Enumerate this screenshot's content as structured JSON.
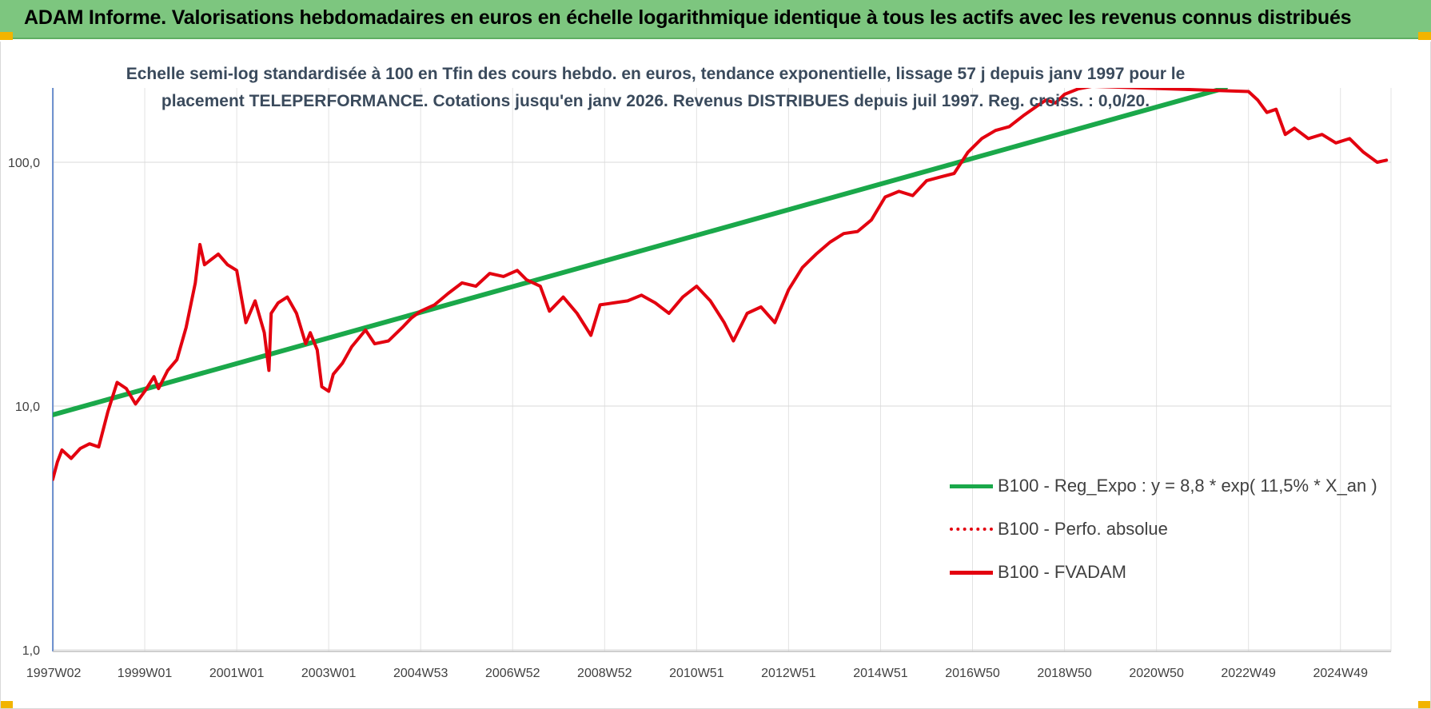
{
  "header": {
    "title": "ADAM Informe. Valorisations hebdomadaires en euros en échelle logarithmique identique à tous les actifs avec les revenus connus distribués"
  },
  "chart_data": {
    "type": "line",
    "title": "Echelle semi-log standardisée à 100 en Tfin des cours hebdo. en euros, tendance exponentielle, lissage 57 j depuis janv 1997 pour le placement TELEPERFORMANCE. Cotations jusqu'en janv 2026. Revenus DISTRIBUES depuis juil 1997. Reg. croiss. : 0,0/20.",
    "y_scale": "log",
    "ylim": [
      1,
      200
    ],
    "xlim": [
      1997.0,
      2026.1
    ],
    "y_ticks": [
      1,
      10,
      100
    ],
    "y_tick_labels": [
      "1,0",
      "10,0",
      "100,0"
    ],
    "x_tick_labels": [
      "1997W02",
      "1999W01",
      "2001W01",
      "2003W01",
      "2004W53",
      "2006W52",
      "2008W52",
      "2010W51",
      "2012W51",
      "2014W51",
      "2016W50",
      "2018W50",
      "2020W50",
      "2022W49",
      "2024W49"
    ],
    "x_ticks": [
      1997.02,
      1999.0,
      2001.0,
      2003.0,
      2005.0,
      2007.0,
      2009.0,
      2011.0,
      2013.0,
      2015.0,
      2017.0,
      2019.0,
      2021.0,
      2023.0,
      2025.0
    ],
    "grid": "vertical and horizontal",
    "legend_position": "lower-right",
    "series": [
      {
        "name": "B100 - Reg_Expo : y = 8,8 * exp( 11,5% *  X_an )",
        "color": "#1aa84a",
        "style": "solid",
        "x": [
          1997.0,
          2022.5
        ],
        "y": [
          9.2,
          202
        ]
      },
      {
        "name": "B100 - Perfo. absolue",
        "color": "#e3000f",
        "style": "dotted",
        "x": [],
        "y": []
      },
      {
        "name": "B100 - FVADAM",
        "color": "#e3000f",
        "style": "solid",
        "x": [
          1997.0,
          1997.1,
          1997.2,
          1997.4,
          1997.6,
          1997.8,
          1998.0,
          1998.2,
          1998.4,
          1998.6,
          1998.8,
          1999.0,
          1999.2,
          1999.3,
          1999.5,
          1999.7,
          1999.9,
          2000.1,
          2000.2,
          2000.3,
          2000.45,
          2000.6,
          2000.8,
          2001.0,
          2001.1,
          2001.2,
          2001.4,
          2001.6,
          2001.7,
          2001.75,
          2001.9,
          2002.1,
          2002.3,
          2002.5,
          2002.6,
          2002.75,
          2002.85,
          2003.0,
          2003.1,
          2003.3,
          2003.5,
          2003.8,
          2004.0,
          2004.3,
          2004.6,
          2004.8,
          2005.0,
          2005.3,
          2005.6,
          2005.9,
          2006.2,
          2006.5,
          2006.8,
          2007.1,
          2007.3,
          2007.6,
          2007.8,
          2008.1,
          2008.4,
          2008.7,
          2008.9,
          2009.2,
          2009.5,
          2009.8,
          2010.1,
          2010.4,
          2010.7,
          2011.0,
          2011.3,
          2011.6,
          2011.8,
          2012.1,
          2012.4,
          2012.7,
          2013.0,
          2013.3,
          2013.6,
          2013.9,
          2014.2,
          2014.5,
          2014.8,
          2015.1,
          2015.4,
          2015.7,
          2016.0,
          2016.3,
          2016.6,
          2016.9,
          2017.2,
          2017.5,
          2017.8,
          2018.1,
          2018.4,
          2018.6,
          2018.8,
          2019.0,
          2019.3,
          2019.6,
          2023.0,
          2023.2,
          2023.4,
          2023.6,
          2023.8,
          2024.0,
          2024.3,
          2024.6,
          2024.9,
          2025.2,
          2025.5,
          2025.8,
          2026.0
        ],
        "y": [
          5.0,
          5.9,
          6.6,
          6.1,
          6.7,
          7.0,
          6.8,
          9.5,
          12.5,
          11.8,
          10.2,
          11.5,
          13.2,
          11.8,
          14.0,
          15.5,
          21.0,
          32.0,
          46.0,
          38.0,
          40.0,
          42.0,
          38.0,
          36.0,
          28.0,
          22.0,
          27.0,
          20.0,
          14.0,
          24.0,
          26.5,
          28.0,
          24.0,
          18.0,
          20.0,
          17.0,
          12.0,
          11.5,
          13.5,
          15.0,
          17.5,
          20.5,
          18.0,
          18.5,
          21.0,
          23.0,
          24.5,
          26.0,
          29.0,
          32.0,
          31.0,
          35.0,
          34.0,
          36.0,
          33.0,
          31.0,
          24.5,
          28.0,
          24.0,
          19.5,
          26.0,
          26.5,
          27.0,
          28.5,
          26.5,
          24.0,
          28.0,
          31.0,
          27.0,
          22.0,
          18.5,
          24.0,
          25.5,
          22.0,
          30.0,
          37.0,
          42.0,
          47.0,
          51.0,
          52.0,
          58.0,
          72.0,
          76.0,
          73.0,
          84.0,
          87.0,
          90.0,
          110.0,
          125.0,
          135.0,
          140.0,
          155.0,
          170.0,
          180.0,
          175.0,
          190.0,
          200.0,
          205.0,
          195.0,
          180.0,
          160.0,
          165.0,
          130.0,
          138.0,
          125.0,
          130.0,
          120.0,
          125.0,
          110.0,
          100.0,
          102.0
        ]
      }
    ]
  }
}
